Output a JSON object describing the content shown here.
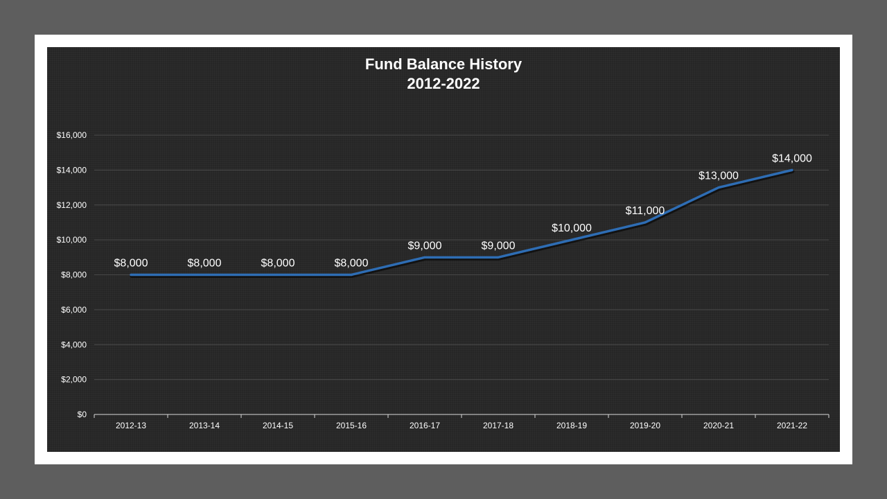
{
  "chart_data": {
    "type": "line",
    "title": "Fund Balance History",
    "subtitle": "2012-2022",
    "categories": [
      "2012-13",
      "2013-14",
      "2014-15",
      "2015-16",
      "2016-17",
      "2017-18",
      "2018-19",
      "2019-20",
      "2020-21",
      "2021-22"
    ],
    "series": [
      {
        "values": [
          8000,
          8000,
          8000,
          8000,
          9000,
          9000,
          10000,
          11000,
          13000,
          14000
        ],
        "labels": [
          "$8,000",
          "$8,000",
          "$8,000",
          "$8,000",
          "$9,000",
          "$9,000",
          "$10,000",
          "$11,000",
          "$13,000",
          "$14,000"
        ]
      }
    ],
    "ylim": [
      0,
      16000
    ],
    "yticks": [
      0,
      2000,
      4000,
      6000,
      8000,
      10000,
      12000,
      14000,
      16000
    ],
    "ytick_labels": [
      "$0",
      "$2,000",
      "$4,000",
      "$6,000",
      "$8,000",
      "$10,000",
      "$12,000",
      "$14,000",
      "$16,000"
    ],
    "xlabel": "",
    "ylabel": "",
    "grid": true,
    "legend": "none",
    "colors": {
      "line": "#2e6db4",
      "background": "#262626",
      "grid": "#4a4a4a",
      "text": "#ffffff"
    }
  }
}
